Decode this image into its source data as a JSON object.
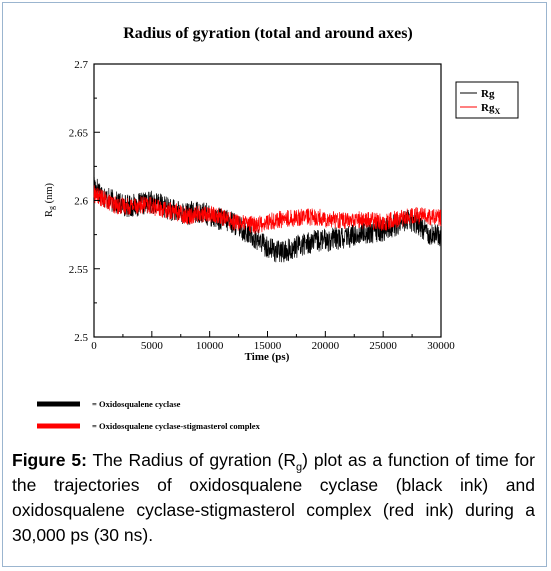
{
  "chart_data": {
    "type": "line",
    "title": "Radius of gyration (total and around axes)",
    "xlabel": "Time (ps)",
    "ylabel": "Rg (nm)",
    "xlim": [
      0,
      30000
    ],
    "ylim": [
      2.5,
      2.7
    ],
    "x_ticks": [
      "0",
      "5000",
      "10000",
      "15000",
      "20000",
      "25000",
      "30000"
    ],
    "y_ticks": [
      "2.5",
      "2.55",
      "2.6",
      "2.65",
      "2.7"
    ],
    "legend_position": "top-right",
    "legend": [
      {
        "label": "Rg",
        "color": "#000000"
      },
      {
        "label": "Rgx",
        "color": "#ff0000"
      }
    ],
    "series": [
      {
        "name": "Rg",
        "color": "#000000",
        "x": [
          0,
          1000,
          2000,
          3000,
          4000,
          5000,
          6000,
          7000,
          8000,
          9000,
          10000,
          11000,
          12000,
          13000,
          14000,
          15000,
          16000,
          17000,
          18000,
          19000,
          20000,
          21000,
          22000,
          23000,
          24000,
          25000,
          26000,
          27000,
          28000,
          29000,
          30000
        ],
        "y": [
          2.612,
          2.602,
          2.598,
          2.596,
          2.597,
          2.599,
          2.596,
          2.592,
          2.59,
          2.592,
          2.589,
          2.586,
          2.584,
          2.578,
          2.572,
          2.566,
          2.562,
          2.564,
          2.568,
          2.57,
          2.571,
          2.572,
          2.573,
          2.576,
          2.577,
          2.578,
          2.582,
          2.586,
          2.583,
          2.576,
          2.574
        ]
      },
      {
        "name": "Rgx",
        "color": "#ff0000",
        "x": [
          0,
          1000,
          2000,
          3000,
          4000,
          5000,
          6000,
          7000,
          8000,
          9000,
          10000,
          11000,
          12000,
          13000,
          14000,
          15000,
          16000,
          17000,
          18000,
          19000,
          20000,
          21000,
          22000,
          23000,
          24000,
          25000,
          26000,
          27000,
          28000,
          29000,
          30000
        ],
        "y": [
          2.605,
          2.6,
          2.596,
          2.596,
          2.597,
          2.596,
          2.593,
          2.592,
          2.589,
          2.59,
          2.59,
          2.588,
          2.585,
          2.583,
          2.582,
          2.584,
          2.586,
          2.587,
          2.588,
          2.588,
          2.587,
          2.586,
          2.585,
          2.586,
          2.585,
          2.584,
          2.586,
          2.588,
          2.589,
          2.588,
          2.587
        ]
      }
    ],
    "below_legend": [
      {
        "label": "= Oxidosqualene cyclase",
        "color": "#000000"
      },
      {
        "label": "= Oxidosqualene cyclase-stigmasterol complex",
        "color": "#ff0000"
      }
    ]
  },
  "caption": {
    "label": "Figure 5:",
    "text_before": " The Radius of gyration (R",
    "subscript": "g",
    "text_after": ") plot as a function of time for the trajectories of oxidosqualene cyclase (black ink) and oxidosqualene cyclase-stigmasterol complex (red ink) during a 30,000 ps (30 ns)."
  }
}
